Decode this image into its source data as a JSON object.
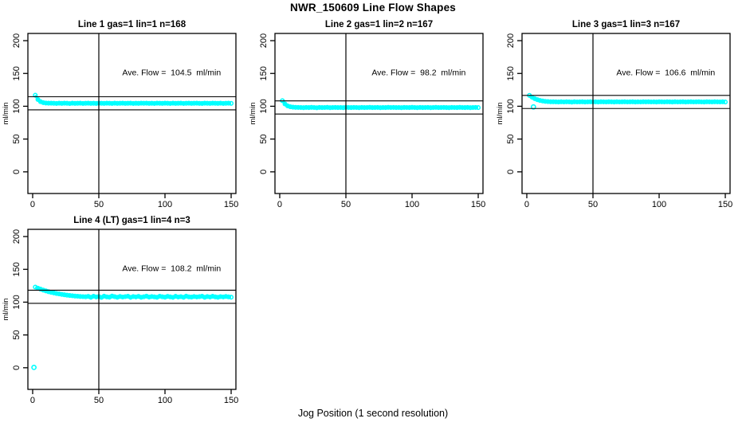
{
  "chart_data": {
    "type": "scatter",
    "title": "NWR_150609  Line Flow Shapes",
    "xlabel": "Jog Position (1 second resolution)",
    "ylabel": "ml/min",
    "x_ticks": [
      0,
      50,
      100,
      150
    ],
    "y_ticks": [
      0,
      50,
      100,
      150,
      200
    ],
    "xlim": [
      -3.6,
      153.6
    ],
    "ylim": [
      -33,
      211
    ],
    "grid": false,
    "legend": "none",
    "point_color": "#00FFFF",
    "line_color": "#000000",
    "background": "#FFFFFF",
    "vline_x": 50,
    "annotation_x": 105,
    "annotation_y": 147,
    "panels": [
      {
        "title": "Line 1 gas=1 lin=1 n=168",
        "ave_flow": 104.5,
        "ave_flow_label": "Ave. Flow =  104.5  ml/min",
        "hlines": [
          114.5,
          94.5
        ],
        "x_start": 2,
        "x_step": 2,
        "y_values": [
          116.8,
          110.2,
          107.0,
          105.5,
          104.9,
          104.7,
          104.6,
          104.5,
          104.3,
          104.6,
          104.4,
          104.7,
          104.5,
          104.2,
          104.6,
          104.4,
          104.5,
          104.7,
          104.3,
          104.5,
          104.6,
          104.4,
          104.5,
          104.3,
          104.7,
          104.5,
          104.4,
          104.6,
          104.5,
          104.3,
          104.6,
          104.4,
          104.5,
          104.7,
          104.4,
          104.5,
          104.6,
          104.3,
          104.5,
          104.4,
          104.7,
          104.5,
          104.6,
          104.4,
          104.5,
          104.3,
          104.6,
          104.5,
          104.4,
          104.7,
          104.5,
          104.3,
          104.6,
          104.4,
          104.5,
          104.6,
          104.3,
          104.5,
          104.7,
          104.4,
          104.5,
          104.6,
          104.4,
          104.3,
          104.6,
          104.5,
          104.4,
          104.7,
          104.5,
          104.4,
          104.6,
          104.3,
          104.5,
          104.6,
          104.4
        ],
        "outliers": []
      },
      {
        "title": "Line 2 gas=1 lin=2 n=167",
        "ave_flow": 98.2,
        "ave_flow_label": "Ave. Flow =  98.2  ml/min",
        "hlines": [
          108.2,
          88.2
        ],
        "x_start": 2,
        "x_step": 2,
        "y_values": [
          108.6,
          103.5,
          100.5,
          99.2,
          98.6,
          98.3,
          98.2,
          98.1,
          97.9,
          98.2,
          98.0,
          98.3,
          98.1,
          97.8,
          98.2,
          98.0,
          98.1,
          98.3,
          97.9,
          98.1,
          98.2,
          98.0,
          98.1,
          97.9,
          98.3,
          98.1,
          98.0,
          98.2,
          98.1,
          97.9,
          98.2,
          98.0,
          98.1,
          98.3,
          98.0,
          98.1,
          98.2,
          97.9,
          98.1,
          98.0,
          98.3,
          98.1,
          98.2,
          98.0,
          98.1,
          97.9,
          98.2,
          98.1,
          98.0,
          98.3,
          98.1,
          97.9,
          98.2,
          98.0,
          98.1,
          98.2,
          97.9,
          98.1,
          98.3,
          98.0,
          98.1,
          98.2,
          98.0,
          97.9,
          98.2,
          98.1,
          98.0,
          98.3,
          98.1,
          98.0,
          98.2,
          97.9,
          98.1,
          98.2,
          98.0
        ],
        "outliers": []
      },
      {
        "title": "Line 3 gas=1 lin=3 n=167",
        "ave_flow": 106.6,
        "ave_flow_label": "Ave. Flow =  106.6  ml/min",
        "hlines": [
          116.6,
          96.6
        ],
        "x_start": 2,
        "x_step": 2,
        "y_values": [
          116.6,
          113.8,
          111.6,
          110.0,
          108.8,
          108.0,
          107.5,
          107.1,
          106.9,
          106.8,
          106.7,
          106.5,
          106.8,
          106.6,
          106.9,
          106.7,
          106.4,
          106.8,
          106.6,
          106.7,
          106.9,
          106.5,
          106.7,
          106.8,
          106.6,
          106.7,
          106.5,
          106.9,
          106.7,
          106.6,
          106.8,
          106.7,
          106.5,
          106.8,
          106.6,
          106.7,
          106.9,
          106.6,
          106.7,
          106.8,
          106.5,
          106.7,
          106.6,
          106.9,
          106.7,
          106.8,
          106.6,
          106.7,
          106.5,
          106.8,
          106.7,
          106.6,
          106.9,
          106.7,
          106.5,
          106.8,
          106.6,
          106.7,
          106.8,
          106.5,
          106.7,
          106.9,
          106.6,
          106.7,
          106.8,
          106.6,
          106.5,
          106.8,
          106.7,
          106.6,
          106.9,
          106.7,
          106.6,
          106.8,
          106.5
        ],
        "outliers": [
          [
            5,
            99.0
          ]
        ]
      },
      {
        "title": "Line 4 (LT) gas=1 lin=4 n=3",
        "ave_flow": 108.2,
        "ave_flow_label": "Ave. Flow =  108.2  ml/min",
        "hlines": [
          118.2,
          98.2
        ],
        "x_start": 2,
        "x_step": 2,
        "y_values": [
          123.0,
          121.3,
          119.8,
          118.4,
          117.2,
          116.0,
          115.0,
          114.1,
          113.2,
          112.5,
          111.8,
          111.2,
          110.6,
          110.1,
          109.7,
          109.3,
          109.0,
          108.7,
          108.4,
          108.2,
          108.8,
          107.4,
          109.0,
          107.9,
          108.5,
          107.2,
          109.1,
          108.1,
          107.6,
          109.3,
          108.3,
          107.5,
          108.7,
          107.8,
          108.4,
          109.0,
          107.3,
          108.6,
          107.9,
          108.8,
          107.5,
          108.2,
          109.1,
          107.7,
          108.5,
          108.0,
          107.4,
          109.0,
          108.2,
          107.6,
          108.8,
          108.1,
          107.3,
          108.9,
          107.8,
          108.4,
          107.5,
          109.2,
          108.0,
          107.7,
          108.6,
          107.9,
          108.3,
          109.0,
          107.4,
          108.5,
          107.8,
          108.9,
          108.1,
          107.5,
          108.4,
          107.9,
          108.7,
          108.0,
          107.6
        ],
        "outliers": [
          [
            1,
            0.5
          ]
        ]
      }
    ]
  }
}
